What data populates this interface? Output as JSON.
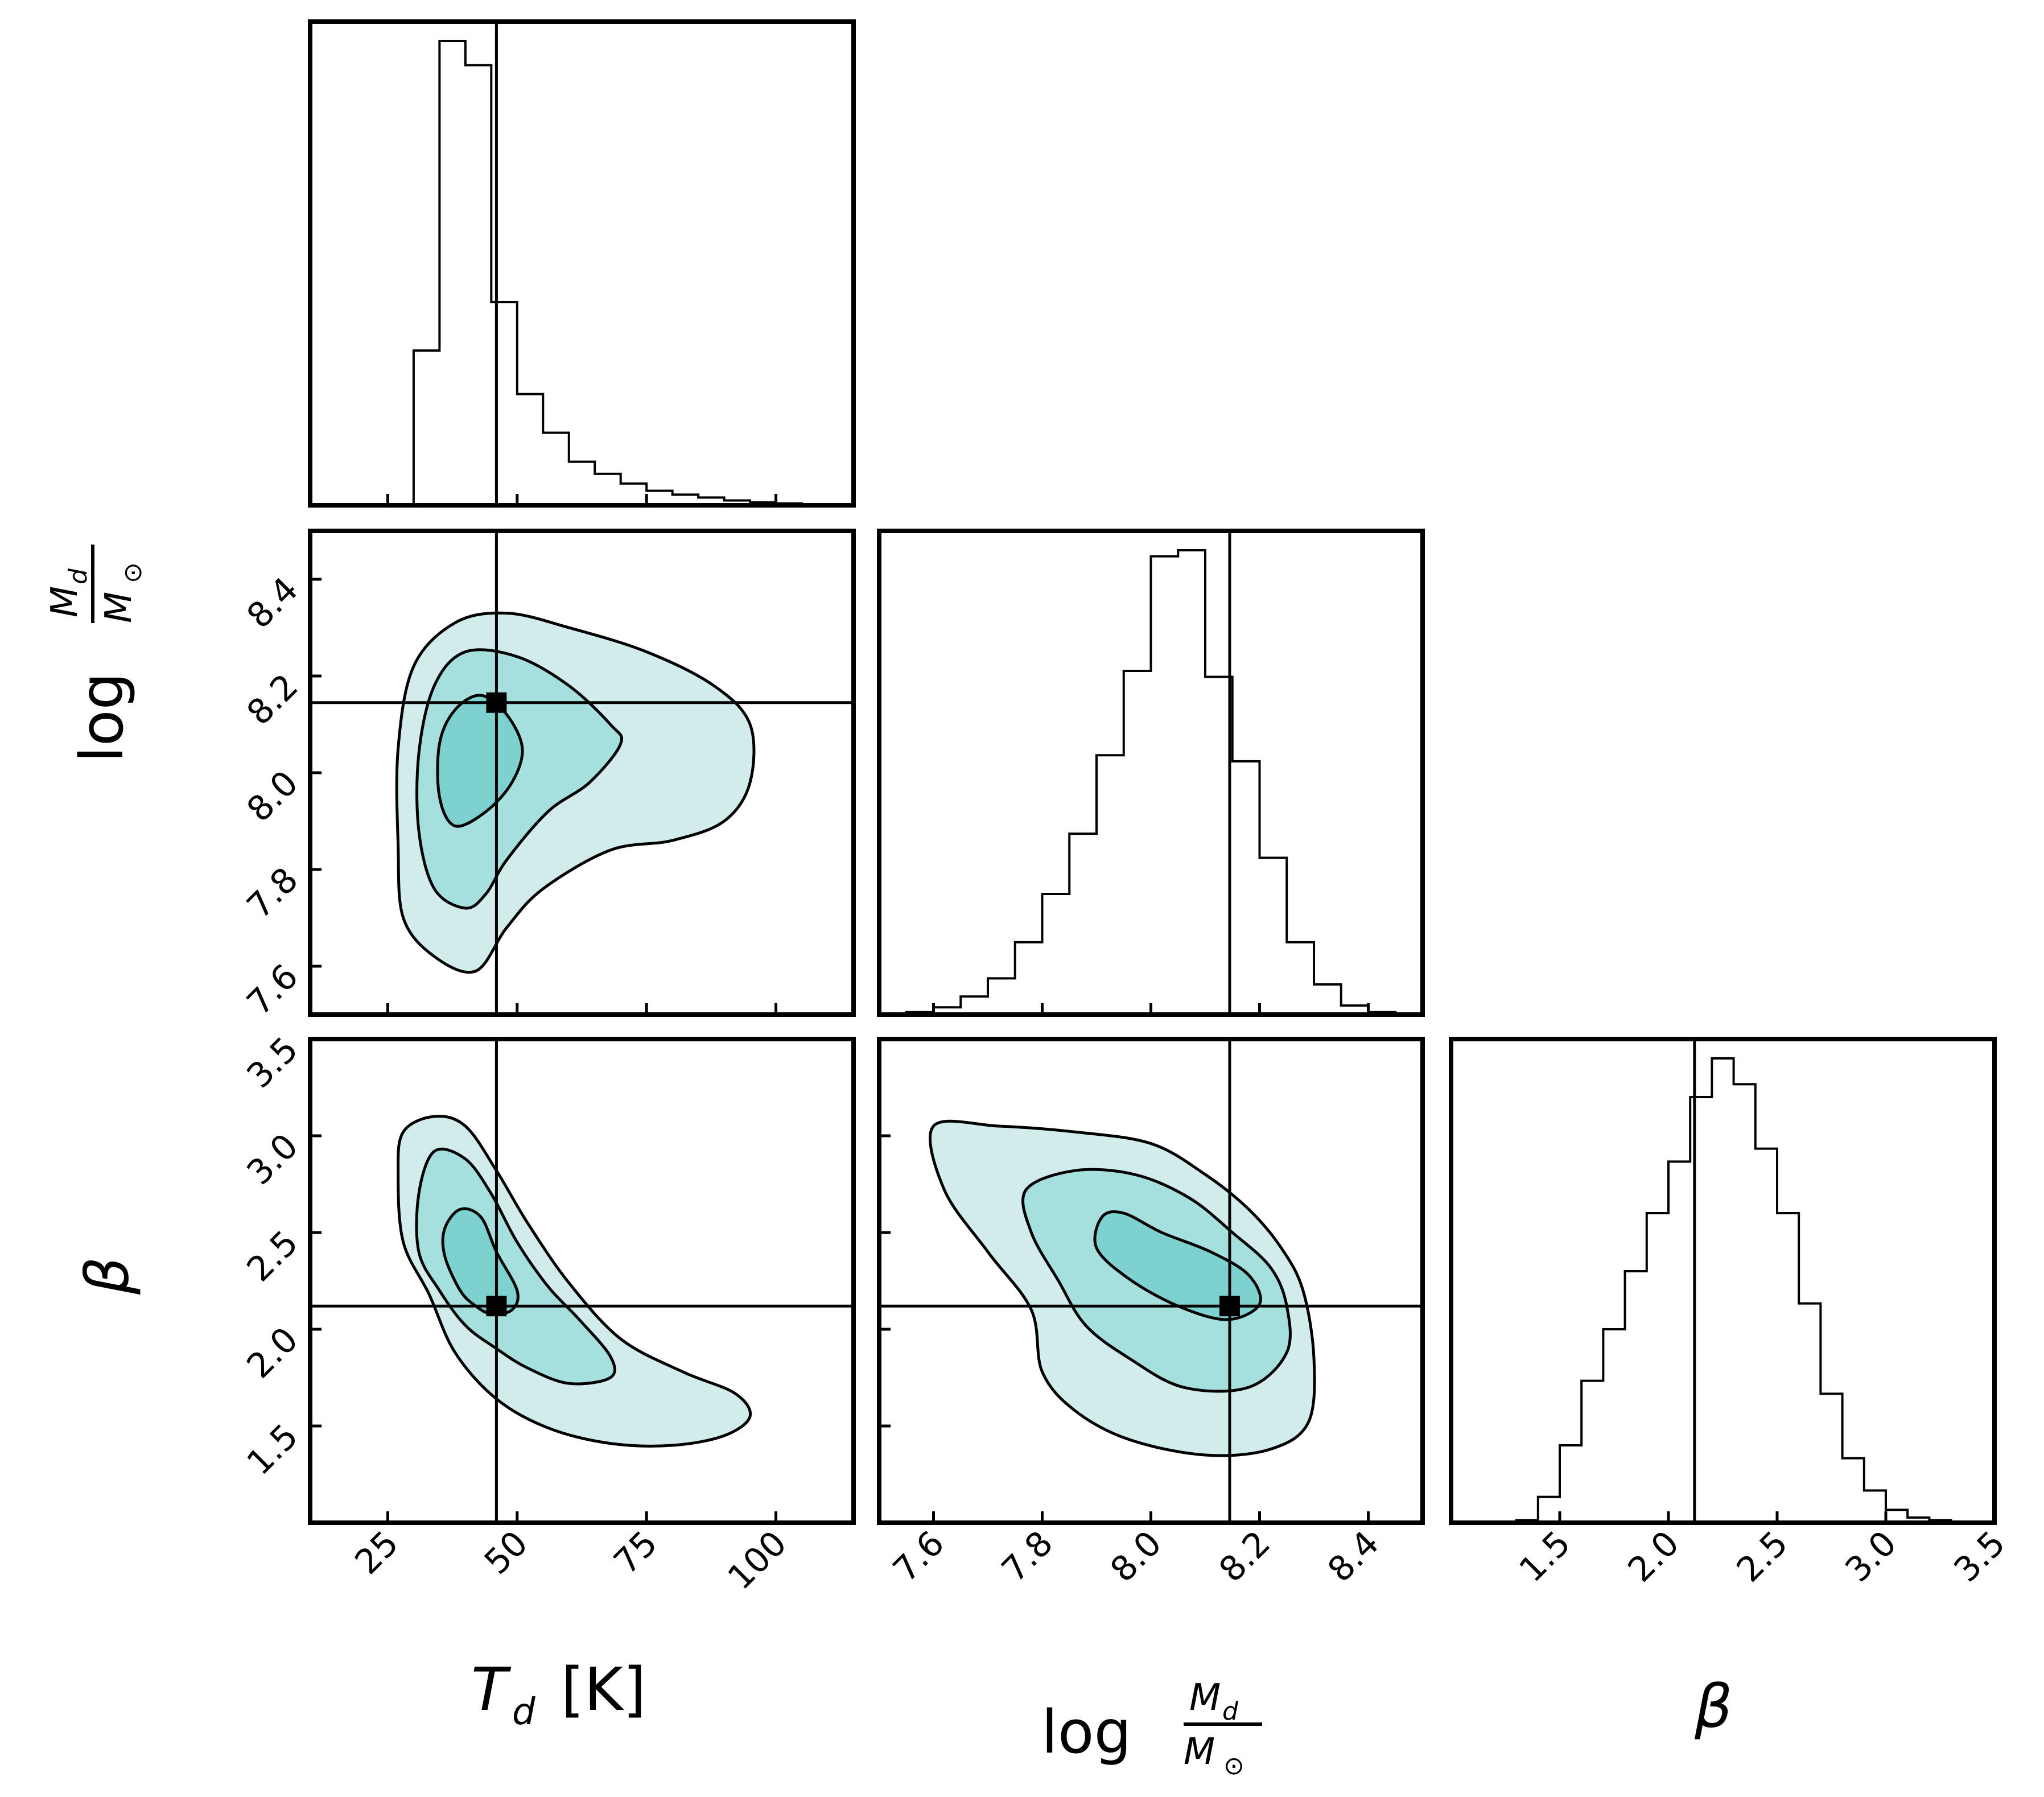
{
  "chart_data": {
    "type": "corner",
    "parameters": [
      {
        "key": "Td",
        "label_main": "T",
        "label_sub": "d",
        "label_unit": "[K]",
        "range": [
          10,
          115
        ],
        "ticks": [
          25,
          50,
          75,
          100
        ],
        "truth": 46
      },
      {
        "key": "logMd",
        "label_prefix": "log",
        "label_num": "M",
        "label_num_sub": "d",
        "label_den": "M",
        "label_den_sub": "⊙",
        "range": [
          7.5,
          8.5
        ],
        "ticks": [
          7.6,
          7.8,
          8.0,
          8.2,
          8.4
        ],
        "truth": 8.145
      },
      {
        "key": "beta",
        "label": "β",
        "range": [
          1.0,
          3.5
        ],
        "ticks": [
          1.5,
          2.0,
          2.5,
          3.0,
          3.5
        ],
        "truth": 2.12
      }
    ],
    "y_tick_labels": {
      "logMd": [
        "7.6",
        "7.8",
        "8.0",
        "8.2",
        "8.4"
      ],
      "beta": [
        "1.5",
        "2.0",
        "2.5",
        "3.0",
        "3.5"
      ]
    },
    "x_tick_labels": {
      "Td": [
        "25",
        "50",
        "75",
        "100"
      ],
      "logMd": [
        "7.6",
        "7.8",
        "8.0",
        "8.2",
        "8.4"
      ],
      "beta": [
        "1.5",
        "2.0",
        "2.5",
        "3.0",
        "3.5"
      ]
    },
    "histograms": {
      "Td": {
        "bin_edges": [
          10,
          15,
          20,
          25,
          30,
          35,
          40,
          45,
          50,
          55,
          60,
          65,
          70,
          75,
          80,
          85,
          90,
          95,
          100,
          105,
          110,
          115
        ],
        "counts": [
          0,
          0,
          0,
          0,
          0.32,
          0.96,
          0.91,
          0.42,
          0.23,
          0.15,
          0.09,
          0.065,
          0.045,
          0.03,
          0.022,
          0.016,
          0.01,
          0.006,
          0.004,
          0.002,
          0
        ]
      },
      "logMd": {
        "bin_edges": [
          7.5,
          7.55,
          7.6,
          7.65,
          7.7,
          7.75,
          7.8,
          7.85,
          7.9,
          7.95,
          8.0,
          8.05,
          8.1,
          8.15,
          8.2,
          8.25,
          8.3,
          8.35,
          8.4,
          8.45,
          8.5
        ],
        "counts": [
          0,
          0.004,
          0.012,
          0.03,
          0.06,
          0.12,
          0.2,
          0.3,
          0.43,
          0.57,
          0.76,
          0.77,
          0.56,
          0.42,
          0.26,
          0.12,
          0.05,
          0.015,
          0.004,
          0
        ]
      },
      "beta": {
        "bin_edges": [
          1.0,
          1.1,
          1.2,
          1.3,
          1.4,
          1.5,
          1.6,
          1.7,
          1.8,
          1.9,
          2.0,
          2.1,
          2.2,
          2.3,
          2.4,
          2.5,
          2.6,
          2.7,
          2.8,
          2.9,
          3.0,
          3.1,
          3.2,
          3.3,
          3.4,
          3.5
        ],
        "counts": [
          0,
          0,
          0,
          0.004,
          0.04,
          0.12,
          0.22,
          0.3,
          0.39,
          0.48,
          0.56,
          0.66,
          0.72,
          0.68,
          0.58,
          0.48,
          0.34,
          0.2,
          0.1,
          0.05,
          0.02,
          0.008,
          0.004,
          0,
          0
        ]
      }
    },
    "contours": {
      "Td_logMd": [
        {
          "level": "outer",
          "fill": "#d2ecec",
          "points": [
            [
              42,
              7.59
            ],
            [
              34,
              7.62
            ],
            [
              28,
              7.7
            ],
            [
              27,
              7.85
            ],
            [
              27,
              8.05
            ],
            [
              30,
              8.22
            ],
            [
              38,
              8.31
            ],
            [
              48,
              8.33
            ],
            [
              60,
              8.3
            ],
            [
              75,
              8.25
            ],
            [
              88,
              8.18
            ],
            [
              95,
              8.1
            ],
            [
              95,
              7.98
            ],
            [
              90,
              7.9
            ],
            [
              80,
              7.86
            ],
            [
              68,
              7.84
            ],
            [
              55,
              7.76
            ],
            [
              48,
              7.68
            ]
          ]
        },
        {
          "level": "mid",
          "fill": "#a6e0de",
          "points": [
            [
              40,
              7.72
            ],
            [
              34,
              7.76
            ],
            [
              31,
              7.88
            ],
            [
              31,
              8.04
            ],
            [
              34,
              8.18
            ],
            [
              40,
              8.25
            ],
            [
              50,
              8.24
            ],
            [
              60,
              8.18
            ],
            [
              68,
              8.1
            ],
            [
              70,
              8.06
            ],
            [
              64,
              7.98
            ],
            [
              56,
              7.92
            ],
            [
              48,
              7.82
            ],
            [
              44,
              7.75
            ]
          ]
        },
        {
          "level": "inner",
          "fill": "#7dd1cf",
          "points": [
            [
              38,
              7.89
            ],
            [
              35,
              7.95
            ],
            [
              35,
              8.06
            ],
            [
              38,
              8.13
            ],
            [
              43,
              8.16
            ],
            [
              48,
              8.12
            ],
            [
              51,
              8.05
            ],
            [
              49,
              7.98
            ],
            [
              44,
              7.92
            ]
          ]
        }
      ],
      "Td_beta": [
        {
          "level": "outer",
          "fill": "#d2ecec",
          "points": [
            [
              33,
              2.18
            ],
            [
              28,
              2.45
            ],
            [
              27,
              2.8
            ],
            [
              28,
              3.02
            ],
            [
              34,
              3.1
            ],
            [
              40,
              3.05
            ],
            [
              46,
              2.82
            ],
            [
              52,
              2.55
            ],
            [
              60,
              2.24
            ],
            [
              70,
              1.95
            ],
            [
              82,
              1.78
            ],
            [
              92,
              1.67
            ],
            [
              95,
              1.55
            ],
            [
              90,
              1.45
            ],
            [
              80,
              1.4
            ],
            [
              68,
              1.41
            ],
            [
              56,
              1.49
            ],
            [
              46,
              1.64
            ],
            [
              38,
              1.88
            ]
          ]
        },
        {
          "level": "mid",
          "fill": "#a6e0de",
          "points": [
            [
              35,
              2.2
            ],
            [
              31,
              2.4
            ],
            [
              31,
              2.7
            ],
            [
              34,
              2.92
            ],
            [
              40,
              2.88
            ],
            [
              45,
              2.7
            ],
            [
              50,
              2.45
            ],
            [
              56,
              2.22
            ],
            [
              62,
              2.05
            ],
            [
              68,
              1.86
            ],
            [
              68,
              1.75
            ],
            [
              60,
              1.72
            ],
            [
              52,
              1.8
            ],
            [
              46,
              1.9
            ],
            [
              40,
              2.02
            ]
          ]
        },
        {
          "level": "inner",
          "fill": "#7dd1cf",
          "points": [
            [
              39,
              2.2
            ],
            [
              36,
              2.38
            ],
            [
              36,
              2.52
            ],
            [
              39,
              2.62
            ],
            [
              43,
              2.58
            ],
            [
              46,
              2.4
            ],
            [
              50,
              2.2
            ],
            [
              49,
              2.1
            ],
            [
              45,
              2.08
            ],
            [
              42,
              2.12
            ]
          ]
        }
      ],
      "logMd_beta": [
        {
          "level": "outer",
          "fill": "#d2ecec",
          "points": [
            [
              7.6,
              3.05
            ],
            [
              7.62,
              2.72
            ],
            [
              7.7,
              2.4
            ],
            [
              7.78,
              2.1
            ],
            [
              7.8,
              1.78
            ],
            [
              7.86,
              1.58
            ],
            [
              7.96,
              1.43
            ],
            [
              8.1,
              1.35
            ],
            [
              8.22,
              1.38
            ],
            [
              8.29,
              1.52
            ],
            [
              8.3,
              1.85
            ],
            [
              8.28,
              2.2
            ],
            [
              8.24,
              2.42
            ],
            [
              8.18,
              2.62
            ],
            [
              8.1,
              2.8
            ],
            [
              8.0,
              2.96
            ],
            [
              7.86,
              3.02
            ],
            [
              7.72,
              3.05
            ]
          ]
        },
        {
          "level": "mid",
          "fill": "#a6e0de",
          "points": [
            [
              7.77,
              2.72
            ],
            [
              7.78,
              2.5
            ],
            [
              7.83,
              2.25
            ],
            [
              7.88,
              2.02
            ],
            [
              7.96,
              1.85
            ],
            [
              8.06,
              1.7
            ],
            [
              8.18,
              1.7
            ],
            [
              8.25,
              1.88
            ],
            [
              8.25,
              2.12
            ],
            [
              8.22,
              2.32
            ],
            [
              8.15,
              2.5
            ],
            [
              8.07,
              2.68
            ],
            [
              7.97,
              2.8
            ],
            [
              7.86,
              2.82
            ]
          ]
        },
        {
          "level": "inner",
          "fill": "#7dd1cf",
          "points": [
            [
              7.91,
              2.58
            ],
            [
              7.9,
              2.42
            ],
            [
              7.96,
              2.26
            ],
            [
              8.05,
              2.12
            ],
            [
              8.14,
              2.05
            ],
            [
              8.2,
              2.13
            ],
            [
              8.18,
              2.28
            ],
            [
              8.11,
              2.4
            ],
            [
              8.02,
              2.5
            ],
            [
              7.95,
              2.6
            ]
          ]
        }
      ]
    },
    "colors": {
      "outer": "#d2ecec",
      "mid": "#a6e0de",
      "inner": "#7dd1cf",
      "line": "#000000"
    }
  }
}
